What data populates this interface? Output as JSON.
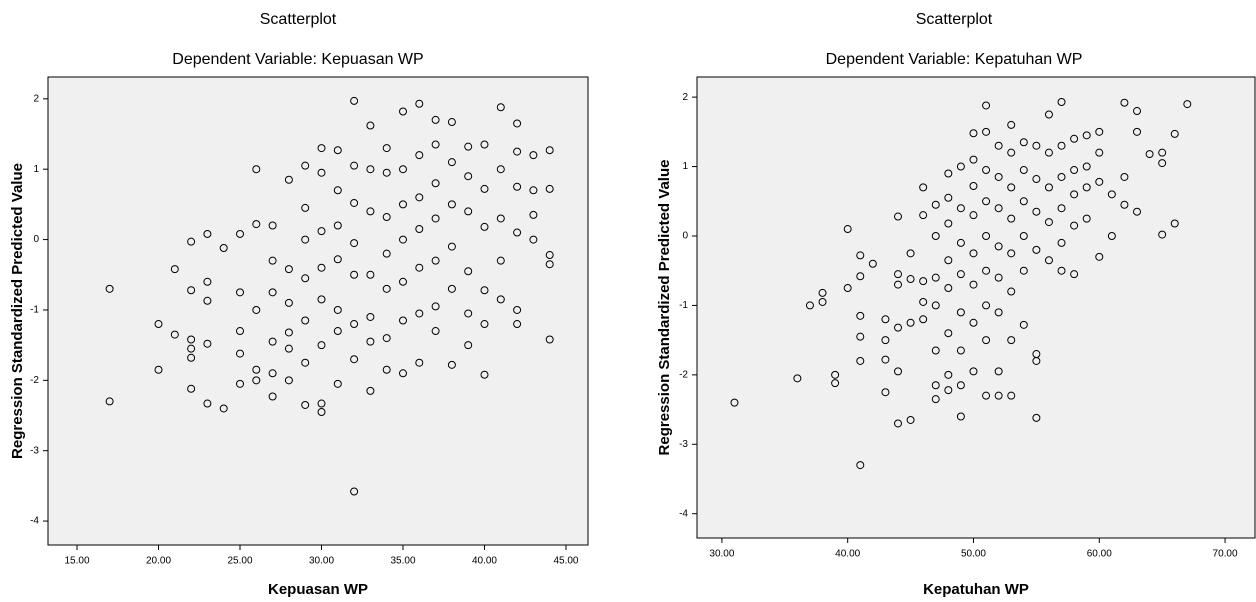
{
  "chart_data": [
    {
      "type": "scatter",
      "title": "Scatterplot",
      "subtitle": "Dependent Variable: Kepuasan WP",
      "x_label": "Kepuasan WP",
      "y_label": "Regression Standardized Predicted Value",
      "x": [
        17,
        17,
        20,
        20,
        21,
        21,
        22,
        22,
        22,
        22,
        22,
        22,
        23,
        23,
        23,
        23,
        23,
        24,
        24,
        25,
        25,
        25,
        25,
        25,
        26,
        26,
        26,
        26,
        26,
        27,
        27,
        27,
        27,
        27,
        27,
        28,
        28,
        28,
        28,
        28,
        28,
        29,
        29,
        29,
        29,
        29,
        29,
        29,
        30,
        30,
        30,
        30,
        30,
        30,
        30,
        30,
        31,
        31,
        31,
        31,
        31,
        31,
        31,
        32,
        32,
        32,
        32,
        32,
        32,
        32,
        32,
        33,
        33,
        33,
        33,
        33,
        33,
        33,
        34,
        34,
        34,
        34,
        34,
        34,
        34,
        35,
        35,
        35,
        35,
        35,
        35,
        35,
        36,
        36,
        36,
        36,
        36,
        36,
        36,
        37,
        37,
        37,
        37,
        37,
        37,
        37,
        38,
        38,
        38,
        38,
        38,
        38,
        39,
        39,
        39,
        39,
        39,
        39,
        40,
        40,
        40,
        40,
        40,
        40,
        41,
        41,
        41,
        41,
        41,
        42,
        42,
        42,
        42,
        42,
        42,
        43,
        43,
        43,
        43,
        44,
        44,
        44,
        44,
        44
      ],
      "values": [
        -0.7,
        -2.3,
        -1.2,
        -1.85,
        -0.42,
        -1.35,
        -0.03,
        -0.72,
        -1.55,
        -1.68,
        -2.12,
        -1.42,
        0.08,
        -0.6,
        -0.87,
        -1.48,
        -2.33,
        -0.12,
        -2.4,
        0.08,
        -0.75,
        -1.3,
        -1.62,
        -2.05,
        1.0,
        0.22,
        -1.0,
        -1.85,
        -2.0,
        0.2,
        -0.3,
        -0.75,
        -1.45,
        -1.9,
        -2.23,
        0.85,
        -0.42,
        -0.9,
        -1.32,
        -1.55,
        -2.0,
        1.05,
        0.45,
        0.0,
        -0.55,
        -1.15,
        -1.75,
        -2.35,
        1.3,
        0.95,
        0.12,
        -0.4,
        -0.85,
        -1.5,
        -2.33,
        -2.45,
        1.27,
        0.7,
        0.2,
        -0.28,
        -1.0,
        -1.3,
        -2.05,
        1.97,
        1.05,
        0.52,
        -0.05,
        -0.5,
        -1.2,
        -1.7,
        -3.58,
        1.62,
        1.0,
        0.4,
        -0.5,
        -1.1,
        -1.45,
        -2.15,
        1.3,
        0.95,
        0.32,
        -0.2,
        -0.7,
        -1.4,
        -1.85,
        1.82,
        1.0,
        0.5,
        0.0,
        -0.6,
        -1.15,
        -1.9,
        1.93,
        1.2,
        0.6,
        0.15,
        -0.4,
        -1.05,
        -1.75,
        1.7,
        1.35,
        0.8,
        0.3,
        -0.3,
        -0.95,
        -1.3,
        1.67,
        1.1,
        0.5,
        -0.1,
        -0.7,
        -1.78,
        1.32,
        0.9,
        0.4,
        -0.45,
        -1.05,
        -1.5,
        1.35,
        0.72,
        0.18,
        -0.72,
        -1.2,
        -1.92,
        1.88,
        1.0,
        0.3,
        -0.3,
        -0.85,
        1.65,
        1.25,
        0.75,
        0.1,
        -1.0,
        -1.2,
        1.2,
        0.7,
        0.35,
        0.0,
        1.27,
        0.72,
        -0.22,
        -0.35,
        -1.42
      ],
      "xlim": [
        13.22,
        46.35
      ],
      "ylim": [
        -4.34,
        2.31
      ],
      "xticks": [
        {
          "value": 15,
          "label": "15.00"
        },
        {
          "value": 20,
          "label": "20.00"
        },
        {
          "value": 25,
          "label": "25.00"
        },
        {
          "value": 30,
          "label": "30.00"
        },
        {
          "value": 35,
          "label": "35.00"
        },
        {
          "value": 40,
          "label": "40.00"
        },
        {
          "value": 45,
          "label": "45.00"
        }
      ],
      "yticks": [
        -4,
        -3,
        -2,
        -1,
        0,
        1,
        2
      ]
    },
    {
      "type": "scatter",
      "title": "Scatterplot",
      "subtitle": "Dependent Variable: Kepatuhan WP",
      "x_label": "Kepatuhan WP",
      "y_label": "Regression Standardized Predicted Value",
      "x": [
        31,
        36,
        37,
        38,
        38,
        39,
        39,
        40,
        40,
        41,
        41,
        41,
        41,
        41,
        41,
        42,
        43,
        43,
        43,
        43,
        44,
        44,
        44,
        44,
        44,
        44,
        45,
        45,
        45,
        45,
        46,
        46,
        46,
        46,
        46,
        47,
        47,
        47,
        47,
        47,
        47,
        47,
        48,
        48,
        48,
        48,
        48,
        48,
        48,
        48,
        49,
        49,
        49,
        49,
        49,
        49,
        49,
        49,
        50,
        50,
        50,
        50,
        50,
        50,
        50,
        50,
        51,
        51,
        51,
        51,
        51,
        51,
        51,
        51,
        51,
        52,
        52,
        52,
        52,
        52,
        52,
        52,
        52,
        53,
        53,
        53,
        53,
        53,
        53,
        53,
        53,
        54,
        54,
        54,
        54,
        54,
        54,
        55,
        55,
        55,
        55,
        55,
        55,
        55,
        56,
        56,
        56,
        56,
        56,
        57,
        57,
        57,
        57,
        57,
        57,
        58,
        58,
        58,
        58,
        58,
        59,
        59,
        59,
        59,
        60,
        60,
        60,
        60,
        61,
        61,
        62,
        62,
        62,
        63,
        63,
        63,
        64,
        65,
        65,
        65,
        66,
        66,
        67
      ],
      "values": [
        -2.4,
        -2.05,
        -1.0,
        -0.82,
        -0.95,
        -2.0,
        -2.12,
        0.1,
        -0.75,
        -0.28,
        -0.58,
        -1.15,
        -1.45,
        -1.8,
        -3.3,
        -0.4,
        -1.2,
        -1.5,
        -1.78,
        -2.25,
        0.28,
        -0.55,
        -0.7,
        -1.32,
        -1.95,
        -2.7,
        -0.25,
        -0.62,
        -1.25,
        -2.65,
        0.7,
        0.3,
        -0.65,
        -0.95,
        -1.2,
        0.45,
        0.0,
        -0.6,
        -1.0,
        -1.65,
        -2.15,
        -2.35,
        0.9,
        0.55,
        0.18,
        -0.35,
        -0.75,
        -1.4,
        -2.0,
        -2.22,
        1.0,
        0.4,
        -0.1,
        -0.55,
        -1.1,
        -1.65,
        -2.15,
        -2.6,
        1.48,
        1.1,
        0.72,
        0.3,
        -0.25,
        -0.7,
        -1.25,
        -1.95,
        1.88,
        1.5,
        0.95,
        0.5,
        0.0,
        -0.5,
        -1.0,
        -1.5,
        -2.3,
        1.3,
        0.85,
        0.4,
        -0.15,
        -0.6,
        -1.1,
        -1.95,
        -2.3,
        1.6,
        1.2,
        0.7,
        0.25,
        -0.25,
        -0.8,
        -1.5,
        -2.3,
        1.35,
        0.95,
        0.5,
        0.0,
        -0.5,
        -1.28,
        1.3,
        0.82,
        0.35,
        -0.2,
        -1.7,
        -1.8,
        -2.62,
        1.75,
        1.2,
        0.7,
        0.2,
        -0.35,
        1.93,
        1.3,
        0.85,
        0.4,
        -0.1,
        -0.5,
        1.4,
        0.95,
        0.6,
        0.15,
        -0.55,
        1.45,
        1.0,
        0.7,
        0.25,
        1.5,
        1.2,
        0.78,
        -0.3,
        0.6,
        0.0,
        1.92,
        0.85,
        0.45,
        1.8,
        1.5,
        0.35,
        1.18,
        1.2,
        1.05,
        0.02,
        1.47,
        0.18,
        1.9
      ],
      "xlim": [
        28.02,
        72.38
      ],
      "ylim": [
        -4.35,
        2.29
      ],
      "xticks": [
        {
          "value": 30,
          "label": "30.00"
        },
        {
          "value": 40,
          "label": "40.00"
        },
        {
          "value": 50,
          "label": "50.00"
        },
        {
          "value": 60,
          "label": "60.00"
        },
        {
          "value": 70,
          "label": "70.00"
        }
      ],
      "yticks": [
        -4,
        -3,
        -2,
        -1,
        0,
        1,
        2
      ]
    }
  ]
}
